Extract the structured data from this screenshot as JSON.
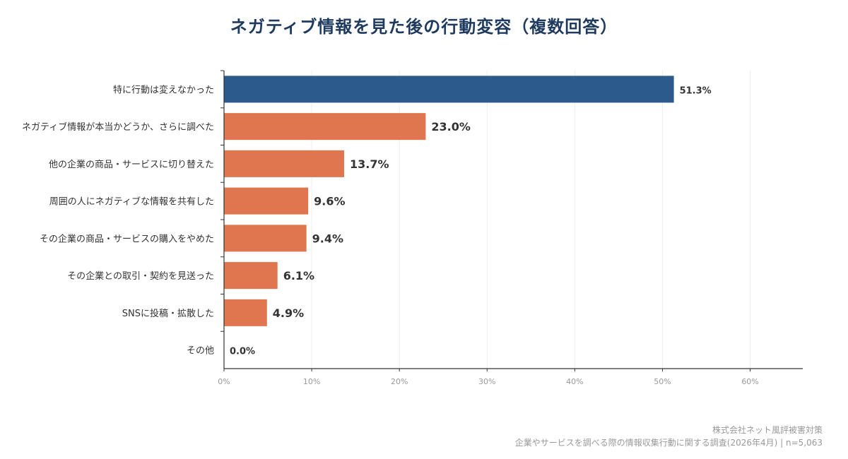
{
  "chart_data": {
    "type": "bar",
    "orientation": "horizontal",
    "title": "ネガティブ情報を見た後の行動変容（複数回答）",
    "categories": [
      "特に行動は変えなかった",
      "ネガティブ情報が本当かどうか、さらに調べた",
      "他の企業の商品・サービスに切り替えた",
      "周囲の人にネガティブな情報を共有した",
      "その企業の商品・サービスの購入をやめた",
      "その企業との取引・契約を見送った",
      "SNSに投稿・拡散した",
      "その他"
    ],
    "values": [
      51.3,
      23.0,
      13.7,
      9.6,
      9.4,
      6.1,
      4.9,
      0.0
    ],
    "value_labels": [
      "51.3%",
      "23.0%",
      "13.7%",
      "9.6%",
      "9.4%",
      "6.1%",
      "4.9%",
      "0.0%"
    ],
    "xlim": [
      0,
      66
    ],
    "xticks": [
      0,
      10,
      20,
      30,
      40,
      50,
      60
    ],
    "xtick_labels": [
      "0%",
      "10%",
      "20%",
      "30%",
      "40%",
      "50%",
      "60%"
    ],
    "grid": true,
    "colors": {
      "highlight": "#2d5a8c",
      "default": "#e07650",
      "axis": "#333333",
      "grid": "#eeeeee",
      "tick_label": "#999999"
    }
  },
  "footer": {
    "line1": "株式会社ネット風評被害対策",
    "line2": "企業やサービスを調べる際の情報収集行動に関する調査(2026年4月) | n=5,063"
  }
}
